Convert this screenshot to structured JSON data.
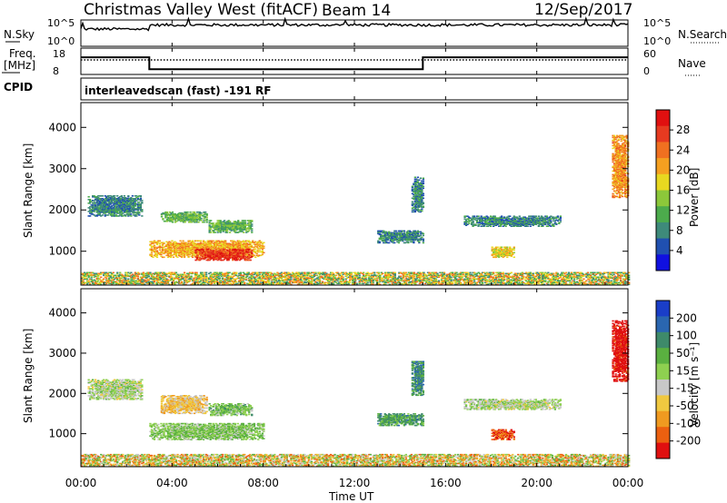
{
  "header": {
    "station": "Christmas Valley West (fitACF)",
    "beam": "Beam 14",
    "date": "12/Sep/2017"
  },
  "sky_panel": {
    "left_label": "N.Sky",
    "right_label": "N.Search",
    "ticks": [
      "10^5",
      "10^0"
    ]
  },
  "freq_panel": {
    "left_label_line1": "Freq.",
    "left_label_line2": "[MHz]",
    "left_ticks": [
      "18",
      "8"
    ],
    "right_ticks": [
      "60",
      "0"
    ],
    "right_label": "Nave",
    "cpid_label": "CPID"
  },
  "program": "interleavedscan (fast) -191 RF",
  "x_axis": {
    "title": "Time UT",
    "ticks": [
      "00:00",
      "04:00",
      "08:00",
      "12:00",
      "16:00",
      "20:00",
      "00:00"
    ]
  },
  "power_panel": {
    "ylabel": "Slant Range [km]",
    "yticks": [
      "1000",
      "2000",
      "3000",
      "4000"
    ],
    "colorbar_label": "Power [dB]",
    "colorbar_ticks": [
      "4",
      "8",
      "12",
      "16",
      "20",
      "24",
      "28"
    ],
    "colors": [
      "#1010e0",
      "#2050b0",
      "#3e8a7a",
      "#4cab4c",
      "#8cc83a",
      "#e8d820",
      "#f5a020",
      "#f07020",
      "#e63a20",
      "#e01010"
    ]
  },
  "velocity_panel": {
    "ylabel": "Slant Range [km]",
    "yticks": [
      "1000",
      "2000",
      "3000",
      "4000"
    ],
    "colorbar_label": "Velocity [m s⁻¹]",
    "colorbar_ticks": [
      "200",
      "100",
      "50",
      "15",
      "-15",
      "-50",
      "-100",
      "-200"
    ],
    "colors": [
      "#1a3ec8",
      "#2a66b0",
      "#3e8a6a",
      "#5ab040",
      "#8ed050",
      "#c8c8c8",
      "#f0c840",
      "#f09a20",
      "#ec6010",
      "#e01010"
    ]
  },
  "chart_data": [
    {
      "type": "line",
      "title": "N.Sky / N.Search",
      "x": [
        0,
        3,
        6,
        9,
        12,
        15,
        18,
        21,
        24
      ],
      "series": [
        {
          "name": "N.Sky",
          "values": [
            3,
            4,
            4,
            4,
            4,
            4,
            4,
            4,
            4
          ]
        }
      ],
      "xlim": [
        0,
        24
      ]
    },
    {
      "type": "line",
      "title": "Freq. / Nave",
      "x": [
        0,
        3.0,
        3.0,
        15.0,
        15.0,
        24
      ],
      "series": [
        {
          "name": "Freq.",
          "values": [
            14.5,
            14.5,
            10,
            10,
            14.5,
            14.5
          ]
        },
        {
          "name": "Nave",
          "values": [
            33,
            33,
            33,
            33,
            33,
            33
          ]
        }
      ],
      "xlim": [
        0,
        24
      ]
    },
    {
      "type": "heatmap",
      "title": "Power [dB]",
      "xlabel": "Time UT",
      "ylabel": "Slant Range [km]",
      "xlim": [
        0,
        24
      ],
      "ylim": [
        180,
        4600
      ],
      "clim": [
        0,
        32
      ],
      "regions": [
        {
          "t": [
            0.3,
            2.7
          ],
          "r": [
            1850,
            2350
          ],
          "value": 8
        },
        {
          "t": [
            3.0,
            8.0
          ],
          "r": [
            850,
            1250
          ],
          "value": 20
        },
        {
          "t": [
            5.0,
            7.5
          ],
          "r": [
            780,
            1050
          ],
          "value": 28
        },
        {
          "t": [
            3.5,
            5.5
          ],
          "r": [
            1700,
            1950
          ],
          "value": 12
        },
        {
          "t": [
            5.6,
            7.5
          ],
          "r": [
            1450,
            1750
          ],
          "value": 12
        },
        {
          "t": [
            0,
            24
          ],
          "r": [
            190,
            480
          ],
          "value": 16
        },
        {
          "t": [
            13.0,
            15.0
          ],
          "r": [
            1200,
            1500
          ],
          "value": 8
        },
        {
          "t": [
            16.8,
            21.0
          ],
          "r": [
            1600,
            1850
          ],
          "value": 8
        },
        {
          "t": [
            18.0,
            19.0
          ],
          "r": [
            850,
            1100
          ],
          "value": 18
        },
        {
          "t": [
            23.3,
            24.0
          ],
          "r": [
            2300,
            3800
          ],
          "value": 22
        },
        {
          "t": [
            14.5,
            15.0
          ],
          "r": [
            1950,
            2800
          ],
          "value": 8
        }
      ]
    },
    {
      "type": "heatmap",
      "title": "Velocity [m s⁻¹]",
      "xlabel": "Time UT",
      "ylabel": "Slant Range [km]",
      "xlim": [
        0,
        24
      ],
      "ylim": [
        180,
        4600
      ],
      "clim": [
        -200,
        200
      ],
      "regions": [
        {
          "t": [
            0.3,
            2.7
          ],
          "r": [
            1850,
            2350
          ],
          "value": 0
        },
        {
          "t": [
            3.0,
            8.0
          ],
          "r": [
            850,
            1250
          ],
          "value": 30
        },
        {
          "t": [
            3.5,
            5.5
          ],
          "r": [
            1500,
            1950
          ],
          "value": -60
        },
        {
          "t": [
            5.6,
            7.5
          ],
          "r": [
            1450,
            1750
          ],
          "value": 40
        },
        {
          "t": [
            0,
            24
          ],
          "r": [
            190,
            480
          ],
          "value": -40
        },
        {
          "t": [
            13.0,
            15.0
          ],
          "r": [
            1200,
            1500
          ],
          "value": 80
        },
        {
          "t": [
            16.8,
            21.0
          ],
          "r": [
            1600,
            1850
          ],
          "value": 0
        },
        {
          "t": [
            18.0,
            19.0
          ],
          "r": [
            850,
            1100
          ],
          "value": -150
        },
        {
          "t": [
            23.3,
            24.0
          ],
          "r": [
            2300,
            3800
          ],
          "value": -200
        },
        {
          "t": [
            14.5,
            15.0
          ],
          "r": [
            1950,
            2800
          ],
          "value": 100
        }
      ]
    }
  ]
}
